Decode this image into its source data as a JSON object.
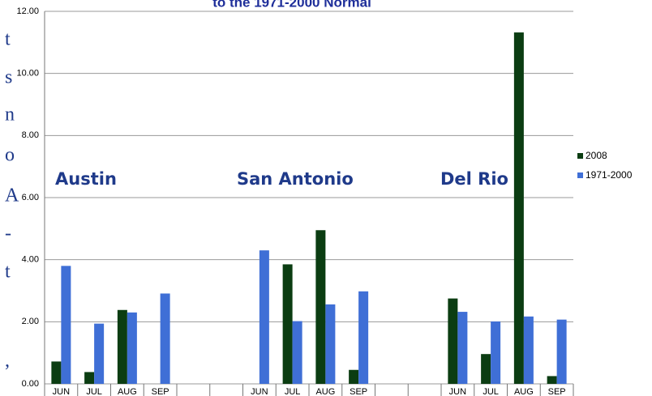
{
  "chart_data": {
    "type": "bar",
    "title": "to the 1971-2000 Normal",
    "categories": [
      "JUN",
      "JUL",
      "AUG",
      "SEP",
      null,
      null,
      "JUN",
      "JUL",
      "AUG",
      "SEP",
      null,
      null,
      "JUN",
      "JUL",
      "AUG",
      "SEP"
    ],
    "series": [
      {
        "name": "2008",
        "color": "#0b3d12",
        "values": [
          0.72,
          0.38,
          2.38,
          0,
          null,
          null,
          0,
          3.85,
          4.95,
          0.45,
          null,
          null,
          2.75,
          0.96,
          11.32,
          0.25
        ]
      },
      {
        "name": "1971-2000",
        "color": "#3f6fd6",
        "values": [
          3.8,
          1.94,
          2.3,
          2.91,
          null,
          null,
          4.3,
          2.02,
          2.56,
          2.98,
          null,
          null,
          2.32,
          2.01,
          2.17,
          2.07
        ]
      }
    ],
    "ylim": [
      0,
      12
    ],
    "yticks": [
      {
        "value": 0,
        "label": "0.00"
      },
      {
        "value": 2,
        "label": "2.00"
      },
      {
        "value": 4,
        "label": "4.00"
      },
      {
        "value": 6,
        "label": "6.00"
      },
      {
        "value": 8,
        "label": "8.00"
      },
      {
        "value": 10,
        "label": "10.00"
      },
      {
        "value": 12,
        "label": "12.00"
      }
    ],
    "grid": true,
    "legend": "right",
    "annotations": [
      "Austin",
      "San Antonio",
      "Del Rio"
    ],
    "left_fragments": [
      "t",
      "s",
      "n",
      "o",
      "A",
      "-",
      "t",
      ","
    ]
  }
}
